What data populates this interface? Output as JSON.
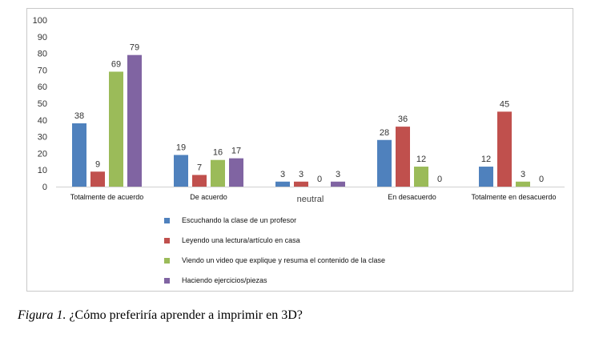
{
  "chart_data": {
    "type": "bar",
    "categories": [
      "Totalmente de acuerdo",
      "De acuerdo",
      "neutral",
      "En desacuerdo",
      "Totalmente en desacuerdo"
    ],
    "series": [
      {
        "name": "Escuchando la clase de un profesor",
        "color": "#4F81BD",
        "values": [
          38,
          19,
          3,
          28,
          12
        ]
      },
      {
        "name": "Leyendo una lectura/artículo en casa",
        "color": "#C0504D",
        "values": [
          9,
          7,
          3,
          36,
          45
        ]
      },
      {
        "name": "Viendo un video que explique y resuma el contenido de la clase",
        "color": "#9BBB59",
        "values": [
          69,
          16,
          0,
          12,
          3
        ]
      },
      {
        "name": "Haciendo ejercicios/piezas",
        "color": "#8064A2",
        "values": [
          79,
          17,
          3,
          0,
          0
        ]
      }
    ],
    "ylim": [
      0,
      100
    ],
    "yticks": [
      0,
      10,
      20,
      30,
      40,
      50,
      60,
      70,
      80,
      90,
      100
    ],
    "grid": false,
    "legend": "bottom"
  },
  "caption": {
    "figure_label": "Figura 1.",
    "text": " ¿Cómo preferiría aprender a imprimir en 3D?"
  }
}
